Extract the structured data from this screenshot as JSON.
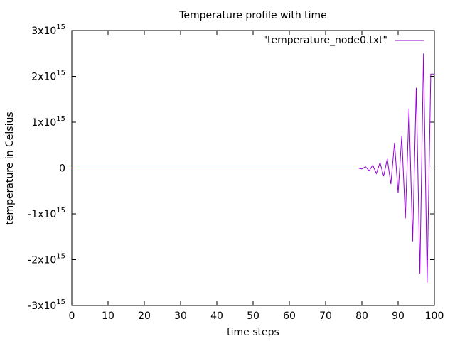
{
  "chart_data": {
    "type": "line",
    "title": "Temperature profile with time",
    "xlabel": "time steps",
    "ylabel": "temperature in Celsius",
    "xlim": [
      0,
      100
    ],
    "ylim": [
      -3000000000000000.0,
      3000000000000000.0
    ],
    "grid": false,
    "legend_position": "top-right",
    "x_ticks": [
      0,
      10,
      20,
      30,
      40,
      50,
      60,
      70,
      80,
      90,
      100
    ],
    "x_tick_labels": [
      "0",
      "10",
      "20",
      "30",
      "40",
      "50",
      "60",
      "70",
      "80",
      "90",
      "100"
    ],
    "y_ticks": [
      {
        "value": 3000000000000000.0,
        "base": "3x10",
        "exp": "15"
      },
      {
        "value": 2000000000000000.0,
        "base": "2x10",
        "exp": "15"
      },
      {
        "value": 1000000000000000.0,
        "base": "1x10",
        "exp": "15"
      },
      {
        "value": 0,
        "base": "0",
        "exp": ""
      },
      {
        "value": -1000000000000000.0,
        "base": "-1x10",
        "exp": "15"
      },
      {
        "value": -2000000000000000.0,
        "base": "-2x10",
        "exp": "15"
      },
      {
        "value": -3000000000000000.0,
        "base": "-3x10",
        "exp": "15"
      }
    ],
    "series": [
      {
        "name": "\"temperature_node0.txt\"",
        "color": "#9400d3",
        "x": [
          0,
          79,
          80,
          81,
          82,
          83,
          84,
          85,
          86,
          87,
          88,
          89,
          90,
          91,
          92,
          93,
          94,
          95,
          96,
          97,
          98,
          99,
          100
        ],
        "y": [
          0,
          0,
          -20000000000000.0,
          30000000000000.0,
          -60000000000000.0,
          60000000000000.0,
          -120000000000000.0,
          120000000000000.0,
          -180000000000000.0,
          200000000000000.0,
          -350000000000000.0,
          550000000000000.0,
          -550000000000000.0,
          700000000000000.0,
          -1100000000000000.0,
          1300000000000000.0,
          -1600000000000000.0,
          1750000000000000.0,
          -2300000000000000.0,
          2500000000000000.0,
          -2500000000000000.0,
          2050000000000000.0,
          2050000000000000.0
        ]
      }
    ]
  }
}
